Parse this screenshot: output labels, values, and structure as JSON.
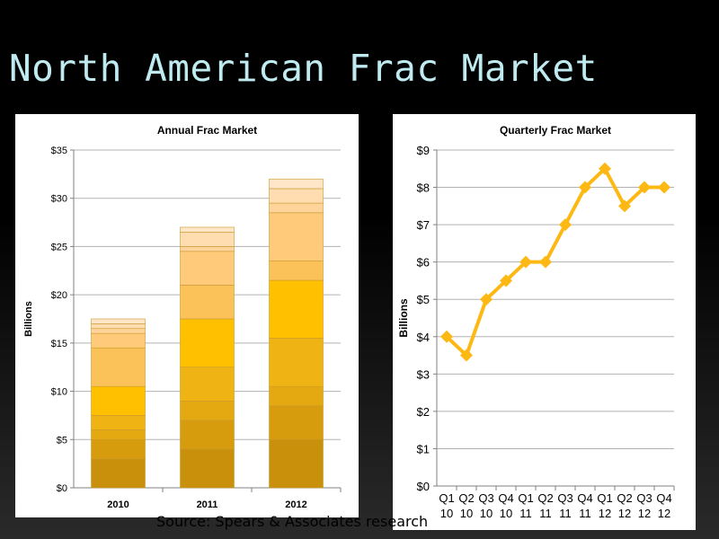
{
  "colors": {
    "title": "#bfeaf0",
    "accent": "#fdb813",
    "line": "#fdb813"
  },
  "slide": {
    "title": "North American Frac Market",
    "source": "Source:  Spears & Associates research"
  },
  "chart_data": [
    {
      "type": "bar",
      "stacked": true,
      "title": "Annual Frac Market",
      "ylabel": "Billions",
      "xlabel": "",
      "categories": [
        "2010",
        "2011",
        "2012"
      ],
      "ylim": [
        0,
        35
      ],
      "yticks": [
        "$0",
        "$5",
        "$10",
        "$15",
        "$20",
        "$25",
        "$30",
        "$35"
      ],
      "grid": true,
      "legend": "none",
      "segment_colors": [
        "#c8900b",
        "#d69c0e",
        "#e4a910",
        "#efb414",
        "#ffc000",
        "#fbc25a",
        "#ffca79",
        "#fed49a",
        "#ffddb1",
        "#ffe6c9"
      ],
      "segments": [
        [
          3.0,
          2.0,
          1.0,
          1.5,
          3.0,
          4.0,
          1.5,
          0.5,
          0.5,
          0.5
        ],
        [
          4.0,
          3.0,
          2.0,
          3.5,
          5.0,
          3.5,
          3.5,
          0.5,
          1.5,
          0.5
        ],
        [
          5.0,
          3.5,
          2.0,
          5.0,
          6.0,
          2.0,
          5.0,
          1.0,
          1.5,
          1.0
        ]
      ],
      "totals": [
        17.5,
        27,
        32
      ]
    },
    {
      "type": "line",
      "title": "Quarterly Frac Market",
      "ylabel": "Billions",
      "xlabel": "",
      "categories": [
        [
          "Q1",
          "10"
        ],
        [
          "Q2",
          "10"
        ],
        [
          "Q3",
          "10"
        ],
        [
          "Q4",
          "10"
        ],
        [
          "Q1",
          "11"
        ],
        [
          "Q2",
          "11"
        ],
        [
          "Q3",
          "11"
        ],
        [
          "Q4",
          "11"
        ],
        [
          "Q1",
          "12"
        ],
        [
          "Q2",
          "12"
        ],
        [
          "Q3",
          "12"
        ],
        [
          "Q4",
          "12"
        ]
      ],
      "values": [
        4,
        3.5,
        5,
        5.5,
        6,
        6,
        7,
        8,
        8.5,
        7.5,
        8,
        8
      ],
      "ylim": [
        0,
        9
      ],
      "yticks": [
        "$0",
        "$1",
        "$2",
        "$3",
        "$4",
        "$5",
        "$6",
        "$7",
        "$8",
        "$9"
      ],
      "grid": true,
      "legend": "none",
      "marker": "diamond"
    }
  ]
}
